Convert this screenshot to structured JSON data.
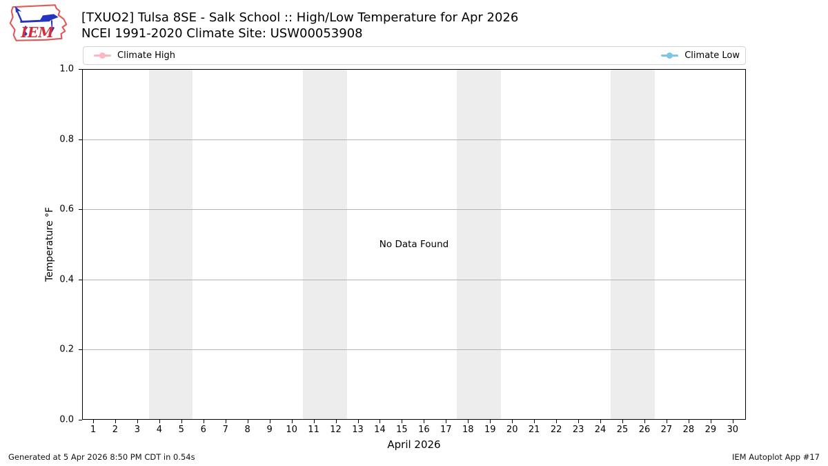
{
  "header": {
    "title": "[TXUO2] Tulsa 8SE - Salk School :: High/Low Temperature for Apr 2026",
    "subtitle": "NCEI 1991-2020 Climate Site: USW00053908",
    "logo_text": "IEM"
  },
  "legend": {
    "items": [
      {
        "label": "Climate High",
        "color": "#ffb6c1"
      },
      {
        "label": "Climate Low",
        "color": "#79c6e6"
      }
    ]
  },
  "chart_data": {
    "type": "line",
    "title": "[TXUO2] Tulsa 8SE - Salk School :: High/Low Temperature for Apr 2026",
    "subtitle": "NCEI 1991-2020 Climate Site: USW00053908",
    "xlabel": "April 2026",
    "ylabel": "Temperature °F",
    "no_data_message": "No Data Found",
    "xlim": [
      0.5,
      30.6
    ],
    "ylim": [
      0.0,
      1.0
    ],
    "x_ticks": [
      1,
      2,
      3,
      4,
      5,
      6,
      7,
      8,
      9,
      10,
      11,
      12,
      13,
      14,
      15,
      16,
      17,
      18,
      19,
      20,
      21,
      22,
      23,
      24,
      25,
      26,
      27,
      28,
      29,
      30
    ],
    "y_ticks": [
      {
        "value": 0.0,
        "label": "0.0"
      },
      {
        "value": 0.2,
        "label": "0.2"
      },
      {
        "value": 0.4,
        "label": "0.4"
      },
      {
        "value": 0.6,
        "label": "0.6"
      },
      {
        "value": 0.8,
        "label": "0.8"
      },
      {
        "value": 1.0,
        "label": "1.0"
      }
    ],
    "grid": true,
    "legend_position": "top",
    "weekend_bands": [
      [
        3.5,
        5.5
      ],
      [
        10.5,
        12.5
      ],
      [
        17.5,
        19.5
      ],
      [
        24.5,
        26.5
      ]
    ],
    "band_color": "#ededed",
    "grid_color": "#b3b3b3",
    "series": [
      {
        "name": "Climate High",
        "color": "#ffb6c1",
        "x": [],
        "values": []
      },
      {
        "name": "Climate Low",
        "color": "#79c6e6",
        "x": [],
        "values": []
      }
    ]
  },
  "footer": {
    "generated": "Generated at 5 Apr 2026 8:50 PM CDT in 0.54s",
    "app": "IEM Autoplot App #17"
  }
}
